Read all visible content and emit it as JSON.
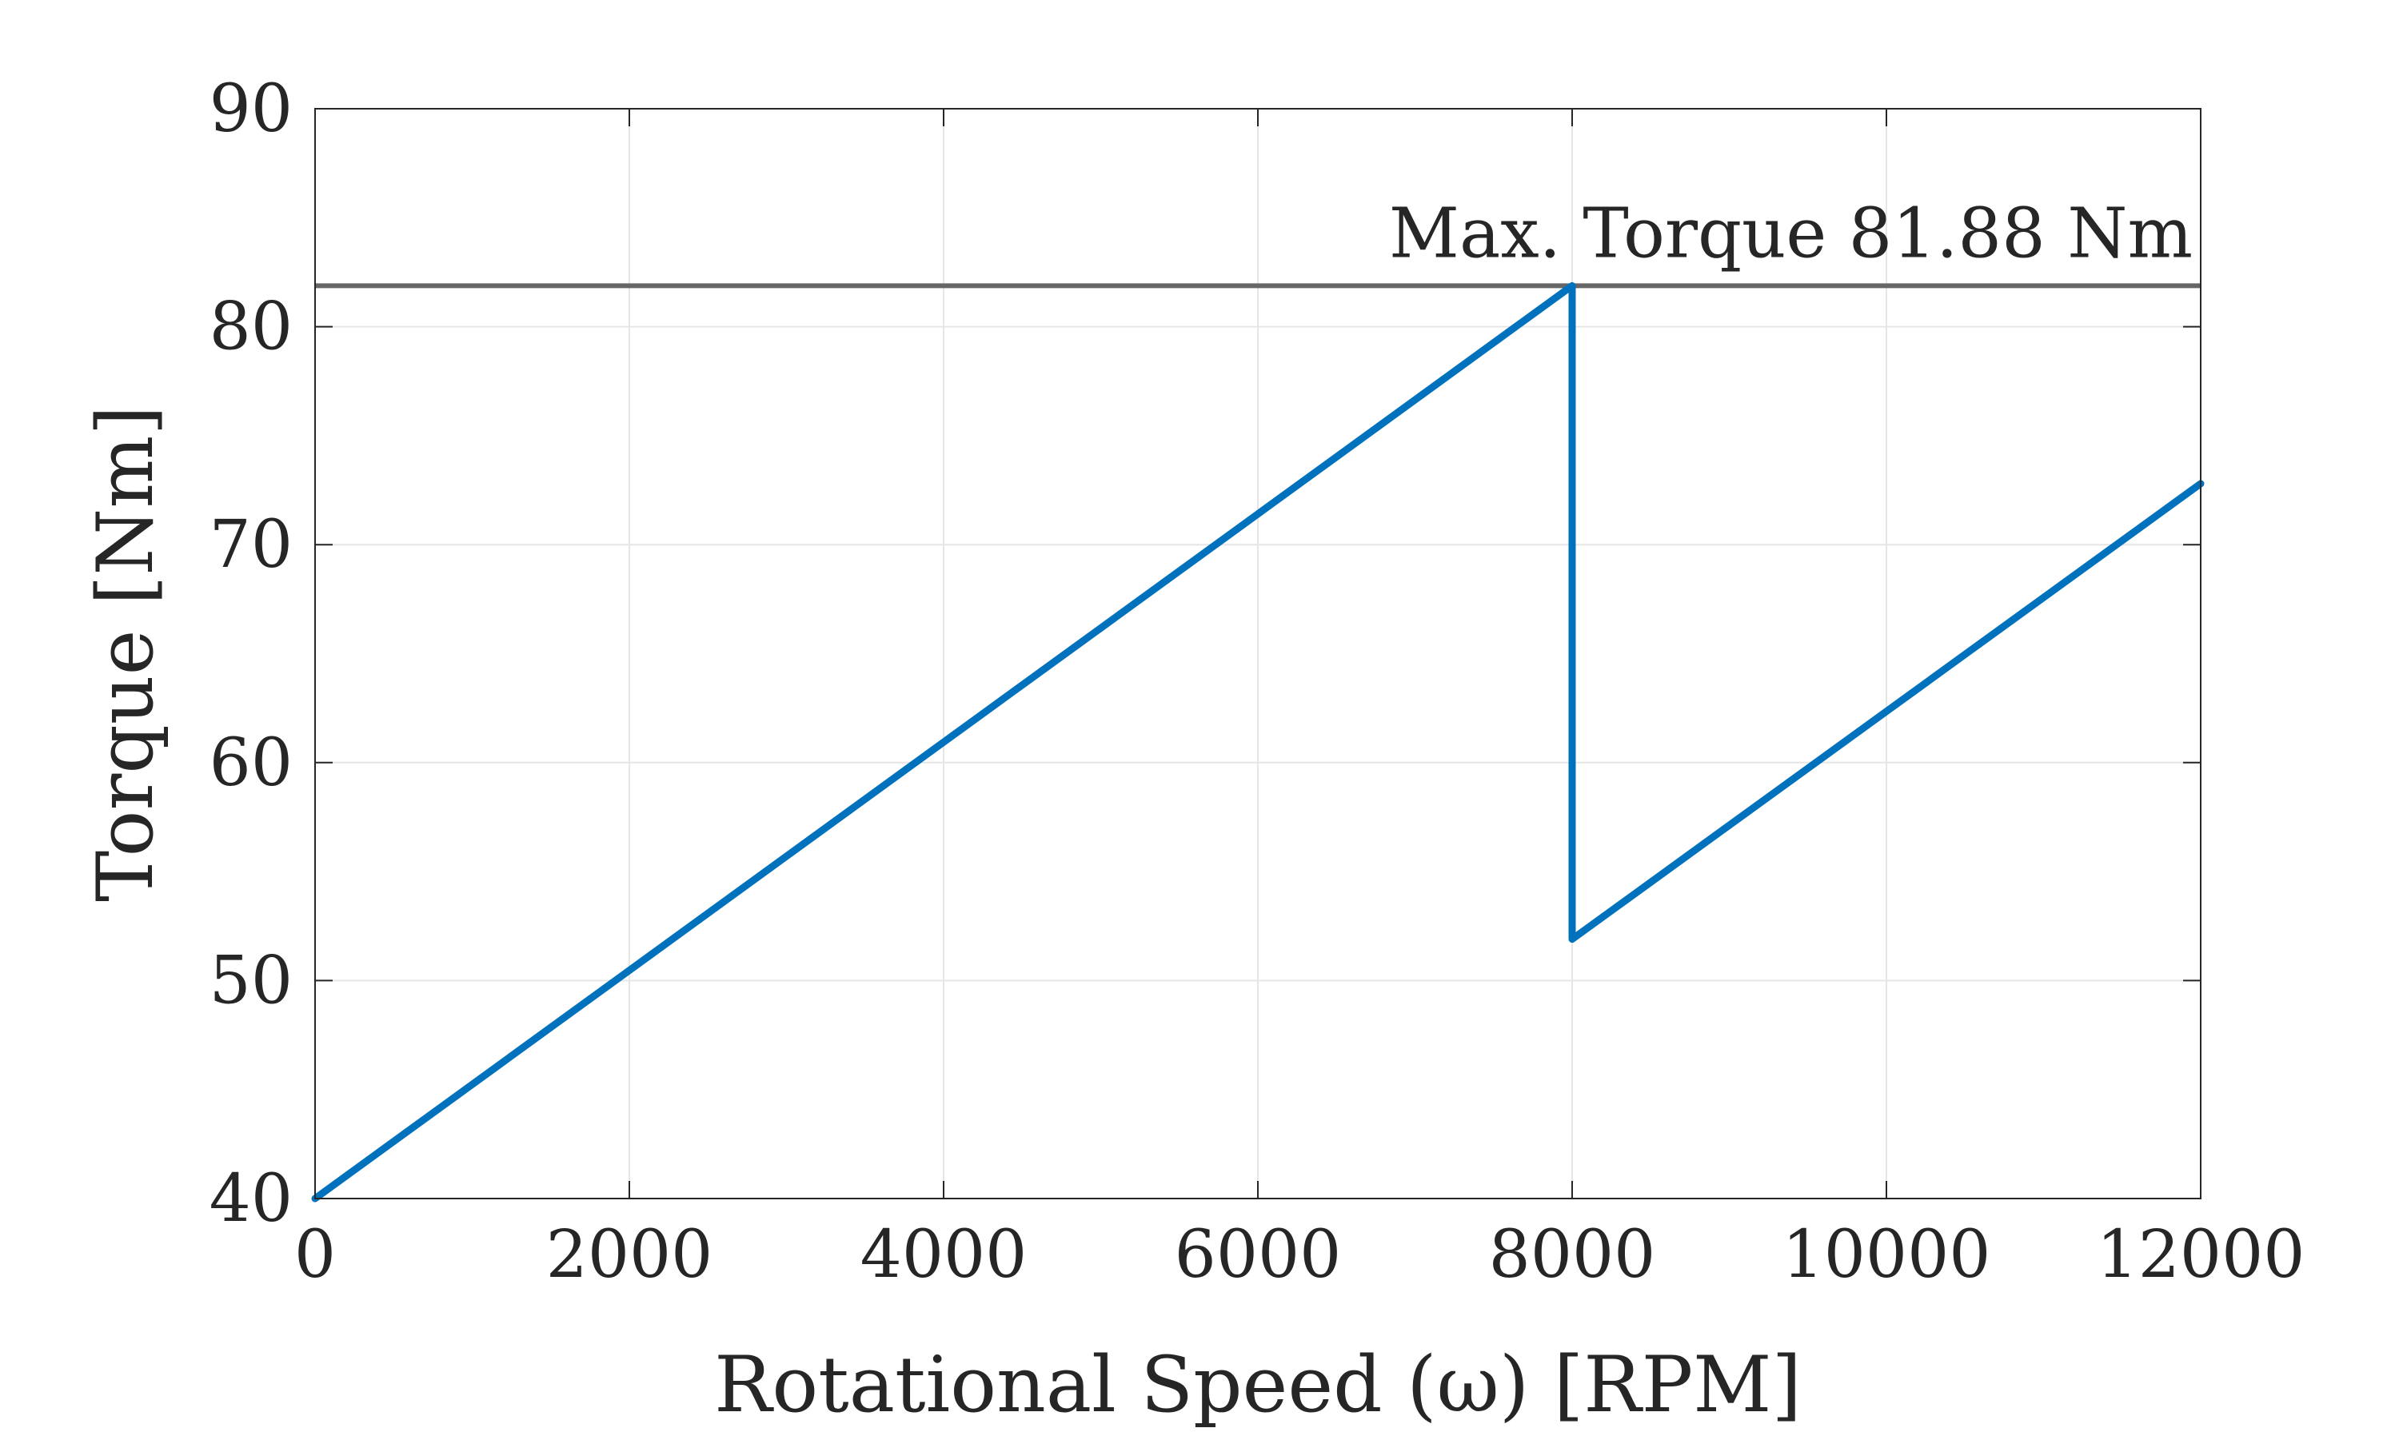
{
  "chart_data": {
    "type": "line",
    "title": "",
    "xlabel": "Rotational Speed (ω) [RPM]",
    "ylabel": "Torque [Nm]",
    "xlim": [
      0,
      12000
    ],
    "ylim": [
      40,
      90
    ],
    "x_ticks": [
      0,
      2000,
      4000,
      6000,
      8000,
      10000,
      12000
    ],
    "y_ticks": [
      40,
      50,
      60,
      70,
      80,
      90
    ],
    "grid": true,
    "legend": "none",
    "series": [
      {
        "name": "",
        "color": "#0072BD",
        "x": [
          0,
          8000,
          8000,
          12000
        ],
        "y": [
          40,
          81.88,
          51.9,
          72.8
        ]
      }
    ],
    "reference_lines": [
      {
        "orientation": "horizontal",
        "y": 81.88,
        "color": "#666666",
        "label": "Max. Torque 81.88 Nm"
      }
    ]
  }
}
